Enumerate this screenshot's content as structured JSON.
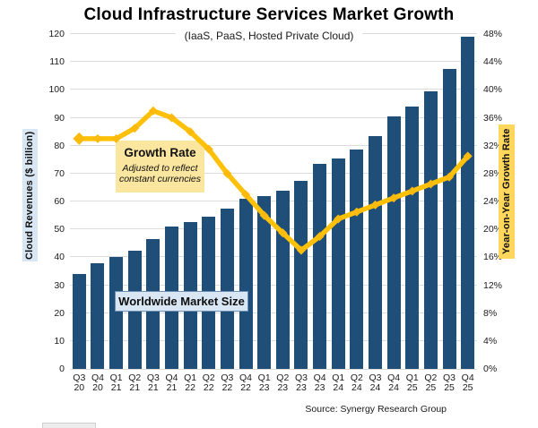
{
  "title": "Cloud Infrastructure Services Market Growth",
  "subtitle": "(IaaS, PaaS, Hosted Private Cloud)",
  "source": "Source: Synergy Research Group",
  "left_axis": {
    "title": "Cloud Revenues ($ billion)",
    "min": 0,
    "max": 120,
    "step": 10
  },
  "right_axis": {
    "title": "Year-on-Year Growth Rate",
    "min": 0,
    "max": 48,
    "step": 4,
    "suffix": "%"
  },
  "annotations": {
    "growth_rate_label": "Growth Rate",
    "growth_rate_note": "Adjusted to reflect constant currencies",
    "market_size_label": "Worldwide Market Size"
  },
  "colors": {
    "bar": "#1F4E79",
    "line": "#FFC008",
    "marker": "#FCBB0C",
    "gridline": "#DCDCDC",
    "growth_box_bg": "#FBE69F",
    "blue_label_bg": "#D9E7F5",
    "blue_label_border": "#6C8EB5",
    "right_axis_label_bg": "#FFD75C",
    "tick_text": "#1a1a1a"
  },
  "chart_data": {
    "type": "bar",
    "combo": "bar+line",
    "categories": [
      "Q3 20",
      "Q4 20",
      "Q1 21",
      "Q2 21",
      "Q3 21",
      "Q4 21",
      "Q1 22",
      "Q2 22",
      "Q3 22",
      "Q4 22",
      "Q1 23",
      "Q2 23",
      "Q3 23",
      "Q4 23",
      "Q1 24",
      "Q2 24",
      "Q3 24",
      "Q4 24",
      "Q1 25",
      "Q2 25",
      "Q3 25",
      "Q4 25"
    ],
    "series": [
      {
        "name": "Worldwide Market Size",
        "type": "bar",
        "axis": "left",
        "values": [
          34,
          38,
          40,
          42.5,
          46.5,
          51,
          52.5,
          54.5,
          57.5,
          61,
          62,
          64,
          67.5,
          73.5,
          75.5,
          78.5,
          83.5,
          90.5,
          94,
          99.5,
          107.5,
          119
        ]
      },
      {
        "name": "Growth Rate (adjusted to reflect constant currencies)",
        "type": "line",
        "axis": "right",
        "values": [
          33,
          33,
          33,
          34.5,
          37,
          36,
          34,
          31.5,
          28,
          25,
          22,
          19.5,
          17,
          19,
          21.5,
          22.5,
          23.5,
          24.5,
          25.5,
          26.5,
          27.5,
          30.5
        ]
      }
    ],
    "title": "Cloud Infrastructure Services Market Growth",
    "xlabel": "",
    "ylabel_left": "Cloud Revenues ($ billion)",
    "ylabel_right": "Year-on-Year Growth Rate",
    "ylim_left": [
      0,
      120
    ],
    "ylim_right": [
      0,
      48
    ],
    "grid": true,
    "legend_position": "none"
  }
}
